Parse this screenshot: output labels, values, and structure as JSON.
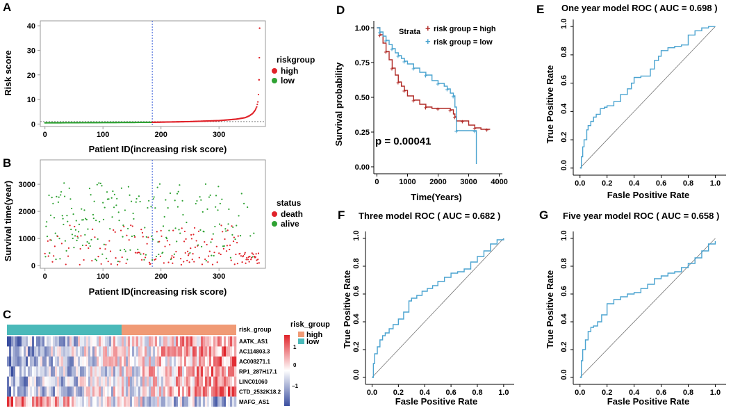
{
  "colors": {
    "high": "#e0232a",
    "low": "#2fa233",
    "death": "#e0232a",
    "alive": "#2fa233",
    "km_high": "#b02a26",
    "km_low": "#4aa3cf",
    "roc": "#4aa3d0",
    "grp_high": "#f09a75",
    "grp_low": "#4ab9b9",
    "heat_high": "#e0232a",
    "heat_low": "#3b4fa0"
  },
  "panelA": {
    "label": "A",
    "chart_data": {
      "type": "scatter",
      "xlabel": "Patient ID(increasing risk score)",
      "ylabel": "Risk score",
      "xlim": [
        -8,
        380
      ],
      "ylim": [
        -1,
        42
      ],
      "xticks": [
        "0",
        "100",
        "200",
        "300"
      ],
      "yticks": [
        "0",
        "10",
        "20",
        "30",
        "40"
      ],
      "cutoff_index": 185,
      "legend_title": "riskgroup",
      "legend": [
        "high",
        "low"
      ],
      "n_patients": 370,
      "risk_points": [
        [
          0,
          0.5
        ],
        [
          180,
          0.7
        ],
        [
          250,
          1.0
        ],
        [
          300,
          1.4
        ],
        [
          330,
          2.0
        ],
        [
          345,
          2.6
        ],
        [
          352,
          3.3
        ],
        [
          358,
          4.3
        ],
        [
          362,
          5.5
        ],
        [
          365,
          7.0
        ],
        [
          367,
          9.0
        ],
        [
          368,
          12
        ],
        [
          369,
          18
        ],
        [
          369.5,
          27
        ],
        [
          370,
          39
        ]
      ]
    }
  },
  "panelB": {
    "label": "B",
    "chart_data": {
      "type": "scatter",
      "xlabel": "Patient ID(increasing risk score)",
      "ylabel": "Survival time(year)",
      "xlim": [
        -8,
        380
      ],
      "ylim": [
        -100,
        3900
      ],
      "xticks": [
        "0",
        "100",
        "200",
        "300"
      ],
      "yticks": [
        "0",
        "1000",
        "2000",
        "3000"
      ],
      "cutoff_index": 185,
      "legend_title": "status",
      "legend": [
        "death",
        "alive"
      ],
      "n_patients": 370
    }
  },
  "panelC": {
    "label": "C",
    "chart_data": {
      "type": "heatmap",
      "annotation_label": "risk_group",
      "genes": [
        "AATK_AS1",
        "AC114803.3",
        "AC008271.1",
        "RP1_287H17.1",
        "LINC01060",
        "CTD_2532K18.2",
        "MAFG_AS1"
      ],
      "gene_trend": [
        1,
        1,
        1,
        1,
        1,
        1,
        -1
      ],
      "legend_title": "risk_group",
      "legend": [
        "high",
        "low"
      ],
      "scale_ticks": [
        "1",
        "0",
        "−1"
      ],
      "split_fraction": 0.5
    }
  },
  "panelD": {
    "label": "D",
    "chart_data": {
      "type": "line",
      "xlabel": "Time(Years)",
      "ylabel": "Survival probability",
      "xlim": [
        -100,
        4100
      ],
      "ylim": [
        -0.05,
        1.05
      ],
      "xticks": [
        "0",
        "1000",
        "2000",
        "3000",
        "4000"
      ],
      "yticks": [
        "0.00",
        "0.25",
        "0.50",
        "0.75",
        "1.00"
      ],
      "legend_title": "Strata",
      "pvalue": "p = 0.00041",
      "series": [
        {
          "name": "risk group = high",
          "x": [
            0,
            100,
            200,
            300,
            400,
            500,
            600,
            700,
            800,
            900,
            1000,
            1200,
            1400,
            1600,
            1800,
            2000,
            2200,
            2400,
            2500,
            2550,
            2600,
            2800,
            3000,
            3200,
            3400,
            3600,
            3700
          ],
          "y": [
            1.0,
            0.95,
            0.89,
            0.83,
            0.77,
            0.71,
            0.66,
            0.61,
            0.58,
            0.55,
            0.51,
            0.48,
            0.45,
            0.43,
            0.42,
            0.42,
            0.42,
            0.41,
            0.38,
            0.36,
            0.33,
            0.33,
            0.3,
            0.28,
            0.27,
            0.27,
            0.27
          ]
        },
        {
          "name": "risk group = low",
          "x": [
            0,
            100,
            200,
            300,
            400,
            500,
            600,
            700,
            800,
            900,
            1000,
            1200,
            1400,
            1600,
            1800,
            2000,
            2200,
            2300,
            2400,
            2500,
            2550,
            2600,
            3000,
            3200,
            3250
          ],
          "y": [
            1.0,
            0.97,
            0.94,
            0.91,
            0.88,
            0.85,
            0.82,
            0.8,
            0.78,
            0.76,
            0.74,
            0.71,
            0.68,
            0.66,
            0.62,
            0.6,
            0.58,
            0.56,
            0.53,
            0.51,
            0.43,
            0.26,
            0.26,
            0.26,
            0.02
          ]
        }
      ]
    }
  },
  "panelE": {
    "label": "E",
    "chart_data": {
      "type": "line",
      "title": "One year model ROC ( AUC =  0.698 )",
      "xlabel": "Fasle Positive Rate",
      "ylabel": "True Positive Rate",
      "xlim": [
        -0.05,
        1.08
      ],
      "ylim": [
        -0.05,
        1.05
      ],
      "xticks": [
        "0.0",
        "0.2",
        "0.4",
        "0.6",
        "0.8",
        "1.0"
      ],
      "yticks": [
        "0.0",
        "0.2",
        "0.4",
        "0.6",
        "0.8",
        "1.0"
      ],
      "series": [
        {
          "name": "ROC",
          "x": [
            0,
            0.01,
            0.02,
            0.03,
            0.05,
            0.06,
            0.08,
            0.1,
            0.12,
            0.15,
            0.18,
            0.2,
            0.25,
            0.3,
            0.35,
            0.38,
            0.4,
            0.45,
            0.5,
            0.52,
            0.55,
            0.58,
            0.6,
            0.65,
            0.7,
            0.75,
            0.8,
            0.85,
            0.9,
            0.95,
            1.0
          ],
          "y": [
            0,
            0.08,
            0.15,
            0.2,
            0.27,
            0.3,
            0.33,
            0.36,
            0.38,
            0.42,
            0.43,
            0.44,
            0.47,
            0.52,
            0.56,
            0.6,
            0.64,
            0.65,
            0.65,
            0.7,
            0.76,
            0.79,
            0.83,
            0.85,
            0.86,
            0.87,
            0.94,
            0.97,
            0.99,
            1.0,
            1.0
          ]
        }
      ]
    }
  },
  "panelF": {
    "label": "F",
    "chart_data": {
      "type": "line",
      "title": "Three model ROC ( AUC =  0.682 )",
      "xlabel": "Fasle Positive Rate",
      "ylabel": "True Positive Rate",
      "xlim": [
        -0.05,
        1.08
      ],
      "ylim": [
        -0.05,
        1.05
      ],
      "xticks": [
        "0.0",
        "0.2",
        "0.4",
        "0.6",
        "0.8",
        "1.0"
      ],
      "yticks": [
        "0.0",
        "0.2",
        "0.4",
        "0.6",
        "0.8",
        "1.0"
      ],
      "series": [
        {
          "name": "ROC",
          "x": [
            0,
            0.01,
            0.02,
            0.04,
            0.06,
            0.08,
            0.1,
            0.13,
            0.16,
            0.2,
            0.24,
            0.28,
            0.3,
            0.34,
            0.38,
            0.42,
            0.46,
            0.5,
            0.55,
            0.6,
            0.65,
            0.7,
            0.75,
            0.8,
            0.85,
            0.9,
            0.95,
            1.0
          ],
          "y": [
            0,
            0.1,
            0.17,
            0.22,
            0.27,
            0.3,
            0.32,
            0.35,
            0.38,
            0.42,
            0.47,
            0.55,
            0.57,
            0.59,
            0.62,
            0.64,
            0.66,
            0.69,
            0.72,
            0.75,
            0.76,
            0.78,
            0.83,
            0.87,
            0.91,
            0.96,
            0.99,
            1.0
          ]
        }
      ]
    }
  },
  "panelG": {
    "label": "G",
    "chart_data": {
      "type": "line",
      "title": "Five year model ROC ( AUC =  0.658 )",
      "xlabel": "Fasle Positive Rate",
      "ylabel": "True Positive Rate",
      "xlim": [
        -0.05,
        1.08
      ],
      "ylim": [
        -0.05,
        1.05
      ],
      "xticks": [
        "0.0",
        "0.2",
        "0.4",
        "0.6",
        "0.8",
        "1.0"
      ],
      "yticks": [
        "0.0",
        "0.2",
        "0.4",
        "0.6",
        "0.8",
        "1.0"
      ],
      "series": [
        {
          "name": "ROC",
          "x": [
            0,
            0.01,
            0.02,
            0.04,
            0.06,
            0.08,
            0.1,
            0.13,
            0.16,
            0.2,
            0.25,
            0.3,
            0.35,
            0.4,
            0.45,
            0.5,
            0.55,
            0.6,
            0.65,
            0.7,
            0.75,
            0.8,
            0.85,
            0.9,
            0.95,
            1.0
          ],
          "y": [
            0,
            0.12,
            0.2,
            0.27,
            0.33,
            0.36,
            0.37,
            0.4,
            0.45,
            0.53,
            0.56,
            0.58,
            0.6,
            0.61,
            0.64,
            0.67,
            0.71,
            0.73,
            0.75,
            0.76,
            0.79,
            0.82,
            0.86,
            0.91,
            0.96,
            0.98
          ]
        }
      ]
    }
  }
}
